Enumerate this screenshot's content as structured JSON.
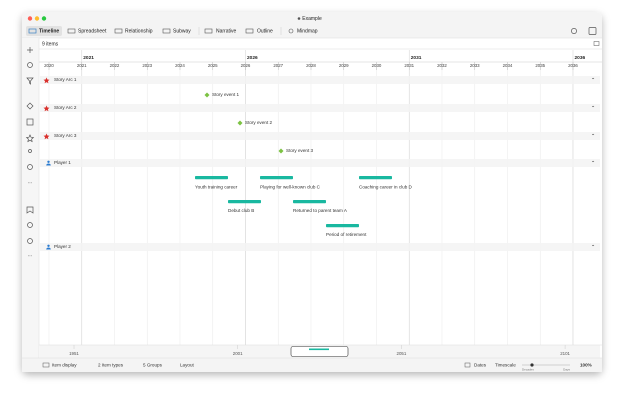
{
  "window": {
    "title": "Example"
  },
  "tabs": [
    "Timeline",
    "Spreadsheet",
    "Relationship",
    "Subway",
    "Narrative",
    "Outline",
    "Mindmap"
  ],
  "item_count": "9 items",
  "ruler": {
    "major": [
      "2021",
      "2026",
      "2031",
      "2036"
    ],
    "minor": [
      "2020",
      "2021",
      "2022",
      "2023",
      "2024",
      "2025",
      "2026",
      "2027",
      "2028",
      "2029",
      "2030",
      "2031",
      "2032",
      "2033",
      "2034",
      "2035",
      "2036"
    ]
  },
  "groups": [
    {
      "name": "Story Arc 1",
      "items": [
        "Story event 1"
      ]
    },
    {
      "name": "Story Arc 2",
      "items": [
        "Story event 2"
      ]
    },
    {
      "name": "Story Arc 3",
      "items": [
        "Story event 3"
      ]
    },
    {
      "name": "Player 1",
      "items": [
        "Youth training career",
        "Playing for well-known club C",
        "Coaching career in club D",
        "Debut club B",
        "Returned to parent team A",
        "Period of retirement"
      ]
    },
    {
      "name": "Player 2"
    }
  ],
  "navigator": [
    "1951",
    "2001",
    "2051",
    "2101"
  ],
  "status": {
    "item_display": "Item display",
    "item_types": "2 Item types",
    "groups": "5 Groups",
    "layout": "Layout",
    "dates": "Dates",
    "timescale": "Timescale",
    "scale_min": "Decades",
    "scale_max": "Days",
    "zoom": "100%"
  }
}
